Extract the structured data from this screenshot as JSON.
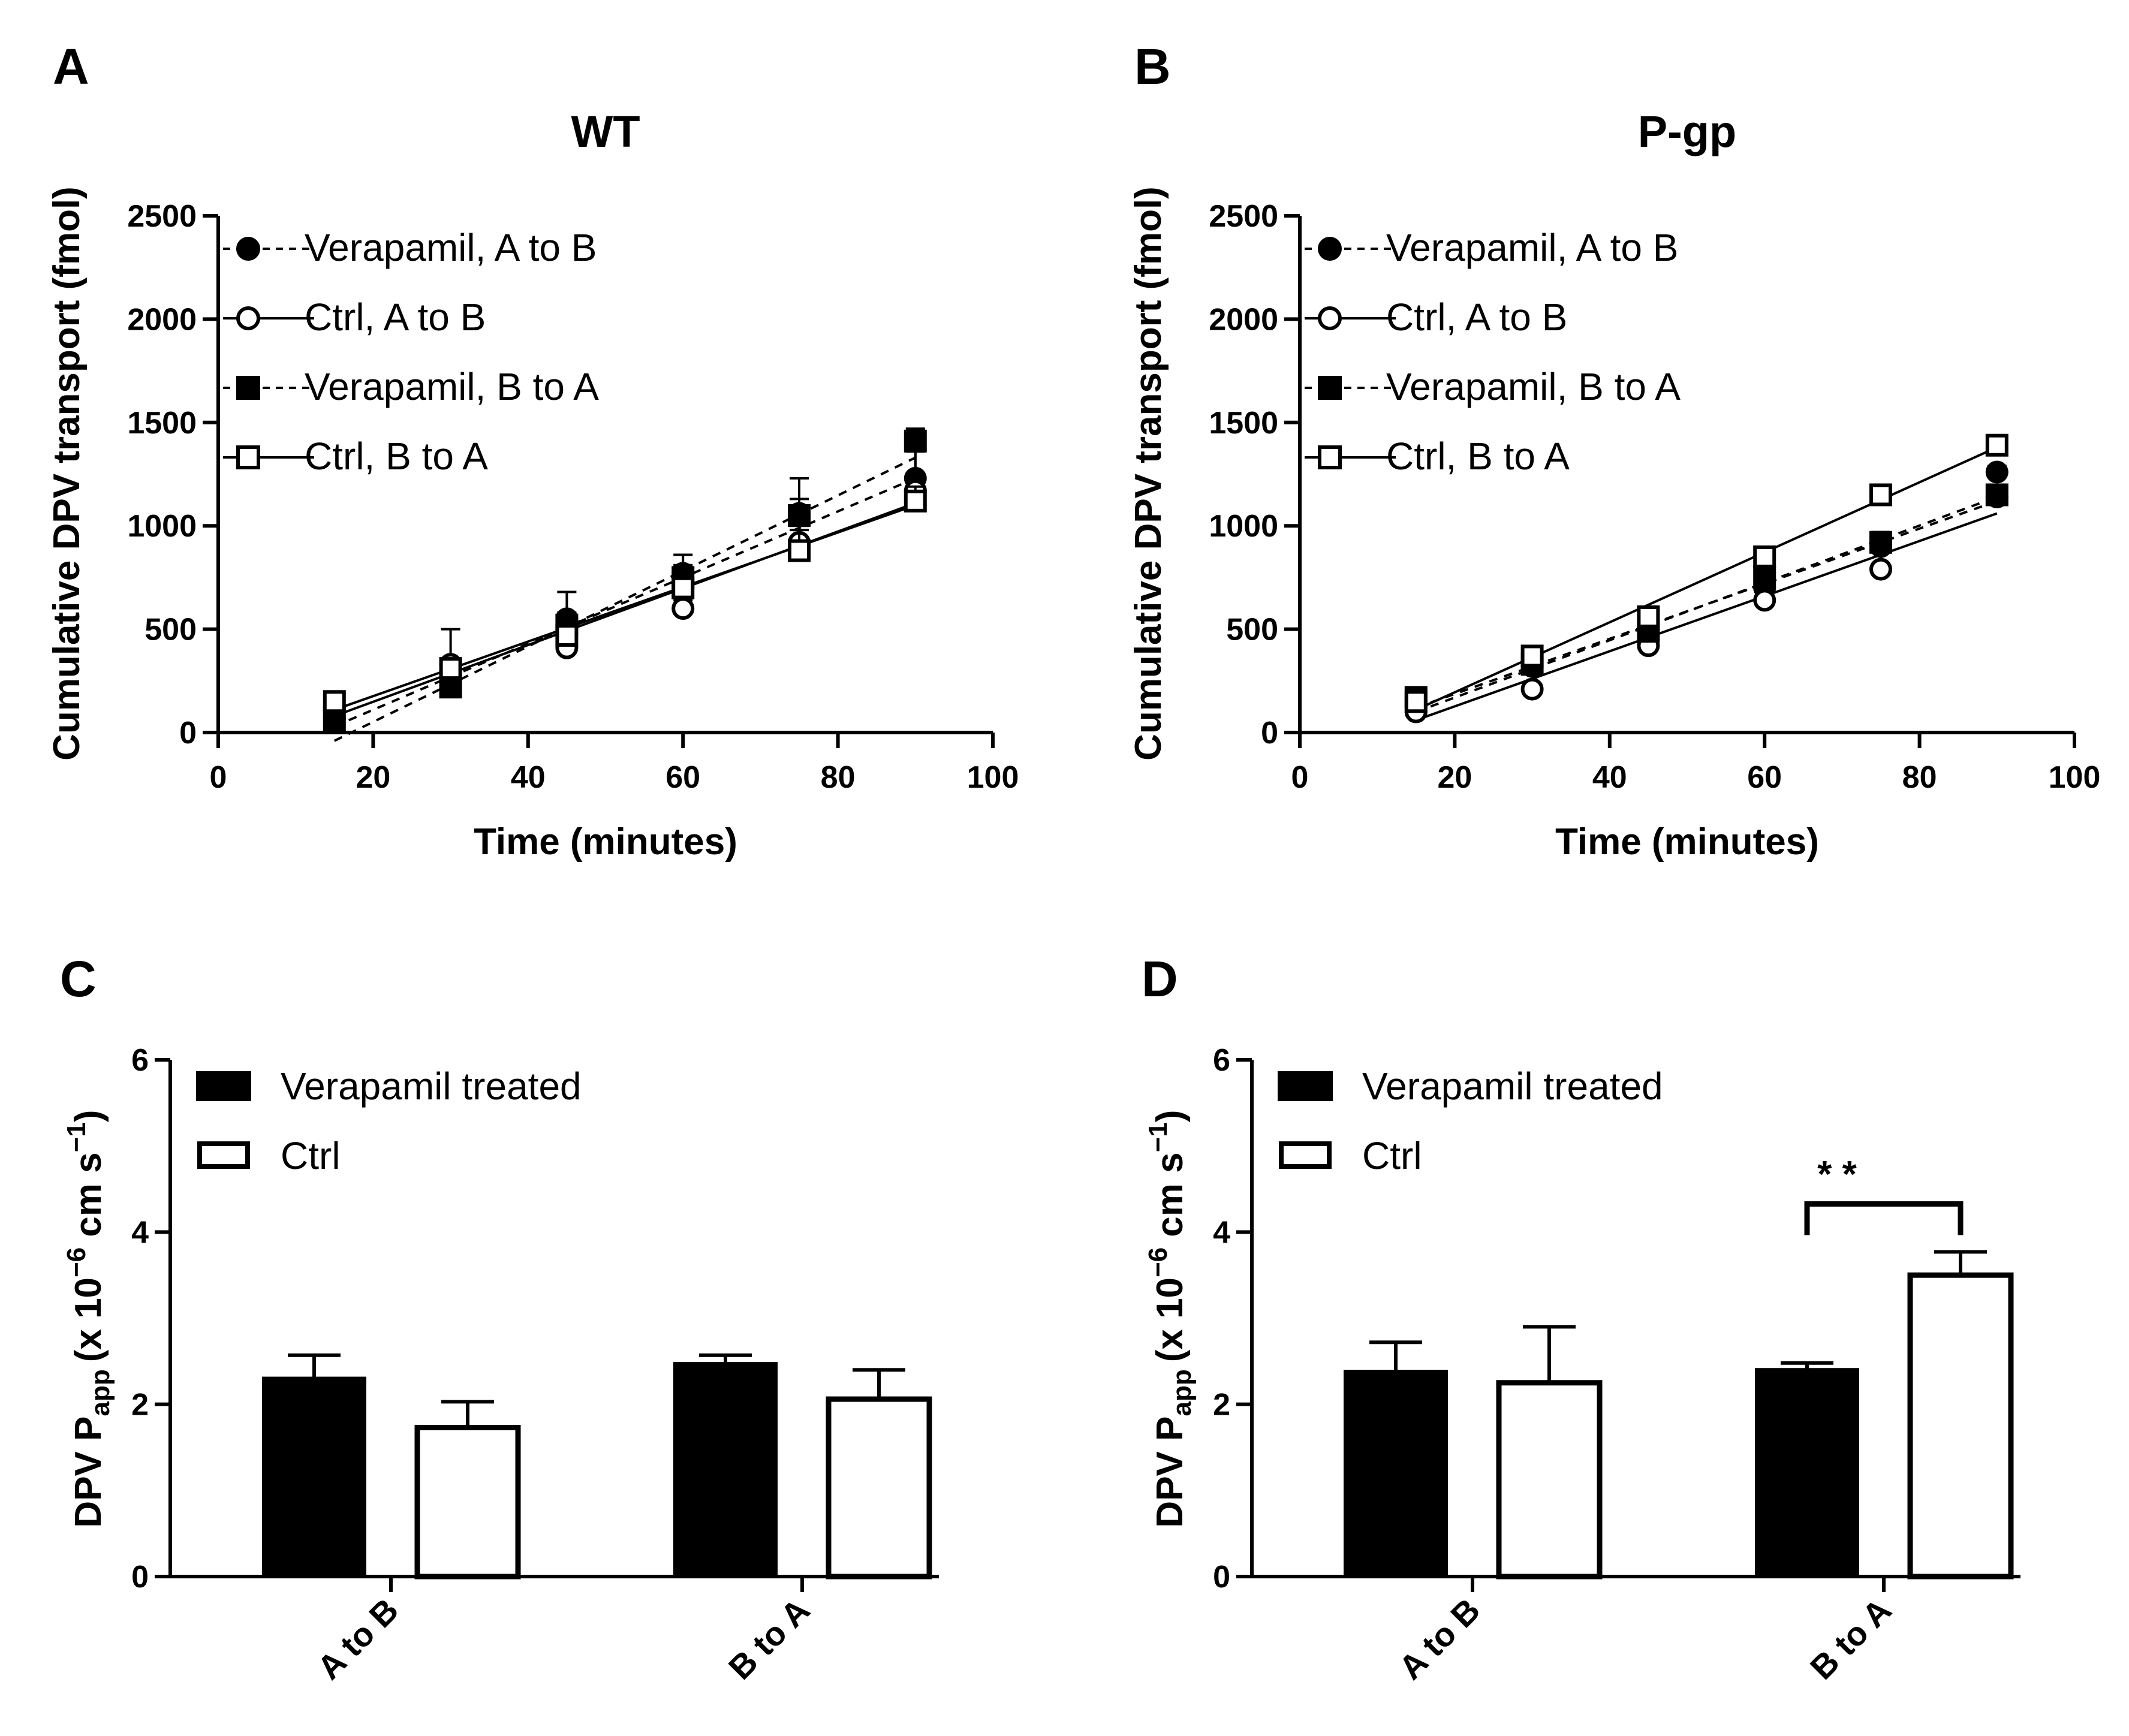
{
  "chart_data": [
    {
      "panel": "A",
      "type": "scatter",
      "title": "WT",
      "xlabel": "Time (minutes)",
      "ylabel": "Cumulative DPV transport (fmol)",
      "xlim": [
        0,
        100
      ],
      "ylim": [
        0,
        2500
      ],
      "xticks": [
        "0",
        "20",
        "40",
        "60",
        "80",
        "100"
      ],
      "yticks": [
        "0",
        "500",
        "1000",
        "1500",
        "2000",
        "2500"
      ],
      "x": [
        15,
        30,
        45,
        60,
        75,
        90
      ],
      "series": [
        {
          "name": "Verapamil, A to B",
          "marker": "filled-circle",
          "line": "dashed",
          "values": [
            70,
            290,
            550,
            770,
            1060,
            1230
          ],
          "errors": [
            15,
            40,
            130,
            90,
            170,
            130
          ],
          "fit": [
            30,
            1230
          ]
        },
        {
          "name": "Ctrl, A to B",
          "marker": "open-circle",
          "line": "solid",
          "values": [
            120,
            330,
            410,
            600,
            920,
            1170
          ],
          "errors": [
            20,
            170,
            70,
            40,
            60,
            190
          ],
          "fit": [
            80,
            1110
          ]
        },
        {
          "name": "Verapamil, B to A",
          "marker": "filled-square",
          "line": "dashed",
          "values": [
            60,
            220,
            520,
            750,
            1050,
            1410
          ],
          "errors": [
            10,
            30,
            60,
            60,
            80,
            60
          ],
          "fit": [
            -40,
            1330
          ]
        },
        {
          "name": "Ctrl, B to A",
          "marker": "open-square",
          "line": "solid",
          "values": [
            150,
            310,
            470,
            700,
            880,
            1120
          ],
          "errors": [
            20,
            30,
            40,
            60,
            120,
            70
          ],
          "fit": [
            110,
            1100
          ]
        }
      ]
    },
    {
      "panel": "B",
      "type": "scatter",
      "title": "P-gp",
      "xlabel": "Time (minutes)",
      "ylabel": "Cumulative DPV transport (fmol)",
      "xlim": [
        0,
        100
      ],
      "ylim": [
        0,
        2500
      ],
      "xticks": [
        "0",
        "20",
        "40",
        "60",
        "80",
        "100"
      ],
      "yticks": [
        "0",
        "500",
        "1000",
        "1500",
        "2000",
        "2500"
      ],
      "x": [
        15,
        30,
        45,
        60,
        75,
        90
      ],
      "series": [
        {
          "name": "Verapamil, A to B",
          "marker": "filled-circle",
          "line": "dashed",
          "values": [
            130,
            320,
            520,
            700,
            900,
            1260
          ],
          "errors": [
            15,
            20,
            40,
            40,
            40,
            30
          ],
          "fit": [
            100,
            1140
          ]
        },
        {
          "name": "Ctrl, A to B",
          "marker": "open-circle",
          "line": "solid",
          "values": [
            100,
            210,
            420,
            640,
            790,
            1140
          ],
          "errors": [
            15,
            20,
            100,
            180,
            110,
            40
          ],
          "fit": [
            60,
            1060
          ]
        },
        {
          "name": "Verapamil, B to A",
          "marker": "filled-square",
          "line": "dashed",
          "values": [
            170,
            330,
            490,
            750,
            920,
            1150
          ],
          "errors": [
            15,
            20,
            30,
            40,
            50,
            30
          ],
          "fit": [
            120,
            1120
          ]
        },
        {
          "name": "Ctrl, B to A",
          "marker": "open-square",
          "line": "solid",
          "values": [
            150,
            370,
            560,
            850,
            1150,
            1390
          ],
          "errors": [
            15,
            20,
            30,
            30,
            40,
            40
          ],
          "fit": [
            110,
            1380
          ]
        }
      ]
    },
    {
      "panel": "C",
      "type": "bar",
      "categories": [
        "A to B",
        "B to A"
      ],
      "ylabel_main": "DPV P",
      "ylabel_sub": "app",
      "ylabel_unit": "(x 10",
      "ylabel_exp1": "−6",
      "ylabel_unit2": " cm s",
      "ylabel_exp2": "−1",
      "ylabel_close": ")",
      "ylim": [
        0,
        6
      ],
      "yticks": [
        "0",
        "2",
        "4",
        "6"
      ],
      "series": [
        {
          "name": "Verapamil treated",
          "fill": "#000000",
          "values": [
            2.3,
            2.47
          ],
          "errors": [
            0.27,
            0.1
          ]
        },
        {
          "name": "Ctrl",
          "fill": "#ffffff",
          "values": [
            1.73,
            2.06
          ],
          "errors": [
            0.3,
            0.34
          ]
        }
      ]
    },
    {
      "panel": "D",
      "type": "bar",
      "categories": [
        "A to B",
        "B to A"
      ],
      "ylabel_main": "DPV P",
      "ylabel_sub": "app",
      "ylabel_unit": "(x 10",
      "ylabel_exp1": "−6",
      "ylabel_unit2": " cm s",
      "ylabel_exp2": "−1",
      "ylabel_close": ")",
      "ylim": [
        0,
        6
      ],
      "yticks": [
        "0",
        "2",
        "4",
        "6"
      ],
      "series": [
        {
          "name": "Verapamil treated",
          "fill": "#000000",
          "values": [
            2.38,
            2.4
          ],
          "errors": [
            0.34,
            0.08
          ]
        },
        {
          "name": "Ctrl",
          "fill": "#ffffff",
          "values": [
            2.25,
            3.5
          ],
          "errors": [
            0.65,
            0.27
          ]
        }
      ],
      "annotation": {
        "text": "* *",
        "category": "B to A"
      }
    }
  ]
}
